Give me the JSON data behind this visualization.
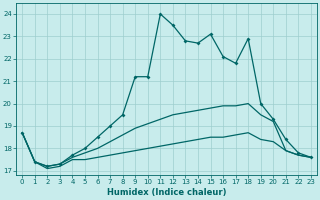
{
  "title": "",
  "xlabel": "Humidex (Indice chaleur)",
  "background_color": "#c8ecec",
  "grid_color": "#9ecece",
  "line_color": "#006666",
  "xlim": [
    -0.5,
    23.5
  ],
  "ylim": [
    16.8,
    24.5
  ],
  "yticks": [
    17,
    18,
    19,
    20,
    21,
    22,
    23,
    24
  ],
  "xticks": [
    0,
    1,
    2,
    3,
    4,
    5,
    6,
    7,
    8,
    9,
    10,
    11,
    12,
    13,
    14,
    15,
    16,
    17,
    18,
    19,
    20,
    21,
    22,
    23
  ],
  "main_y": [
    18.7,
    17.4,
    17.2,
    17.3,
    17.7,
    18.0,
    18.5,
    19.0,
    19.5,
    21.2,
    21.2,
    24.0,
    23.5,
    22.8,
    22.7,
    23.1,
    22.1,
    21.8,
    22.9,
    20.0,
    19.3,
    18.4,
    17.8,
    17.6
  ],
  "mid_y": [
    18.7,
    17.4,
    17.2,
    17.3,
    17.6,
    17.8,
    18.0,
    18.3,
    18.6,
    18.9,
    19.1,
    19.3,
    19.5,
    19.6,
    19.7,
    19.8,
    19.9,
    19.9,
    20.0,
    19.5,
    19.2,
    17.9,
    17.7,
    17.6
  ],
  "bot_y": [
    18.7,
    17.4,
    17.1,
    17.2,
    17.5,
    17.5,
    17.6,
    17.7,
    17.8,
    17.9,
    18.0,
    18.1,
    18.2,
    18.3,
    18.4,
    18.5,
    18.5,
    18.6,
    18.7,
    18.4,
    18.3,
    17.9,
    17.7,
    17.6
  ]
}
